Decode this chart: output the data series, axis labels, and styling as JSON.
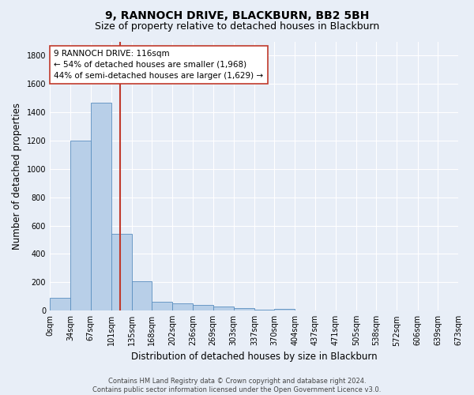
{
  "title": "9, RANNOCH DRIVE, BLACKBURN, BB2 5BH",
  "subtitle": "Size of property relative to detached houses in Blackburn",
  "xlabel": "Distribution of detached houses by size in Blackburn",
  "ylabel": "Number of detached properties",
  "bin_edges": [
    0,
    34,
    67,
    101,
    135,
    168,
    202,
    236,
    269,
    303,
    337,
    370,
    404,
    437,
    471,
    505,
    538,
    572,
    606,
    639,
    673
  ],
  "bin_counts": [
    90,
    1200,
    1470,
    540,
    205,
    65,
    50,
    40,
    28,
    20,
    8,
    12,
    0,
    0,
    0,
    0,
    0,
    0,
    0,
    0
  ],
  "bar_color": "#b8cfe8",
  "bar_edge_color": "#5a8fc0",
  "property_size": 116,
  "vline_color": "#c0392b",
  "annotation_line1": "9 RANNOCH DRIVE: 116sqm",
  "annotation_line2": "← 54% of detached houses are smaller (1,968)",
  "annotation_line3": "44% of semi-detached houses are larger (1,629) →",
  "annotation_box_color": "#ffffff",
  "annotation_box_edge": "#c0392b",
  "footer_text": "Contains HM Land Registry data © Crown copyright and database right 2024.\nContains public sector information licensed under the Open Government Licence v3.0.",
  "ylim": [
    0,
    1900
  ],
  "yticks": [
    0,
    200,
    400,
    600,
    800,
    1000,
    1200,
    1400,
    1600,
    1800
  ],
  "xlim": [
    0,
    673
  ],
  "background_color": "#e8eef7",
  "plot_background": "#e8eef7",
  "grid_color": "#ffffff",
  "title_fontsize": 10,
  "subtitle_fontsize": 9,
  "axis_label_fontsize": 8.5,
  "tick_fontsize": 7,
  "footer_fontsize": 6
}
